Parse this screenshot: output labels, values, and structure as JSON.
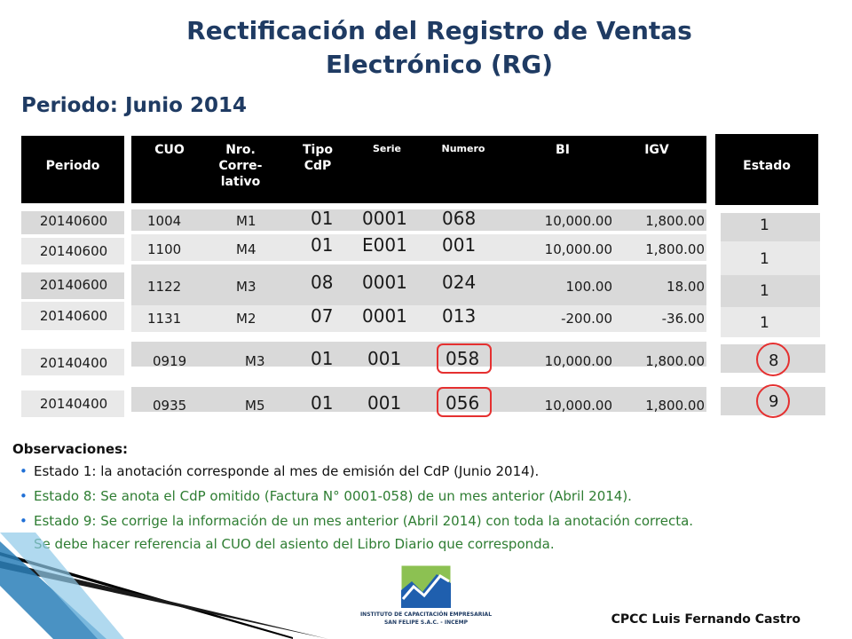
{
  "title": {
    "line1": "Rectificación del Registro de Ventas",
    "line2": "Electrónico (RG)"
  },
  "subtitle": "Periodo: Junio 2014",
  "table": {
    "headers": {
      "periodo": "Periodo",
      "cuo": "CUO",
      "correlativo_1": "Nro.",
      "correlativo_2": "Corre-",
      "correlativo_3": "lativo",
      "tipo_1": "Tipo",
      "tipo_2": "CdP",
      "serie": "Serie",
      "numero": "Numero",
      "bi": "BI",
      "igv": "IGV",
      "estado": "Estado"
    },
    "rows": [
      {
        "periodo": "20140600",
        "cuo": "1004",
        "correlativo": "M1",
        "tipo": "01",
        "serie": "0001",
        "numero": "068",
        "bi": "10,000.00",
        "igv": "1,800.00",
        "estado": "1"
      },
      {
        "periodo": "20140600",
        "cuo": "1100",
        "correlativo": "M4",
        "tipo": "01",
        "serie": "E001",
        "numero": "001",
        "bi": "10,000.00",
        "igv": "1,800.00",
        "estado": "1"
      },
      {
        "periodo": "20140600",
        "cuo": "1122",
        "correlativo": "M3",
        "tipo": "08",
        "serie": "0001",
        "numero": "024",
        "bi": "100.00",
        "igv": "18.00",
        "estado": "1"
      },
      {
        "periodo": "20140600",
        "cuo": "1131",
        "correlativo": "M2",
        "tipo": "07",
        "serie": "0001",
        "numero": "013",
        "bi": "-200.00",
        "igv": "-36.00",
        "estado": "1"
      },
      {
        "periodo": "20140400",
        "cuo": "0919",
        "correlativo": "M3",
        "tipo": "01",
        "serie": "001",
        "numero": "058",
        "bi": "10,000.00",
        "igv": "1,800.00",
        "estado": "8"
      },
      {
        "periodo": "20140400",
        "cuo": "0935",
        "correlativo": "M5",
        "tipo": "01",
        "serie": "001",
        "numero": "056",
        "bi": "10,000.00",
        "igv": "1,800.00",
        "estado": "9"
      }
    ]
  },
  "observaciones": {
    "title": "Observaciones:",
    "items": [
      "Estado 1: la anotación corresponde al mes de emisión del CdP (Junio 2014).",
      "Estado 8: Se anota el CdP omitido (Factura N° 0001-058) de un mes anterior (Abril 2014).",
      "Estado 9: Se corrige la información de un mes anterior (Abril 2014) con toda la anotación correcta.",
      "Se debe hacer referencia al CUO del asiento del Libro Diario que corresponda."
    ]
  },
  "logo": {
    "line1": "INSTITUTO DE CAPACITACIÓN EMPRESARIAL",
    "line2": "SAN FELIPE S.A.C. - INCEMP"
  },
  "author": "CPCC Luis Fernando Castro",
  "colors": {
    "title": "#1f3b63",
    "header_bg": "#000000",
    "row_bg": "#d9d9d9",
    "highlight": "#e53030",
    "obs_green": "#2e7d32",
    "bullet_blue": "#1f6fd6"
  }
}
